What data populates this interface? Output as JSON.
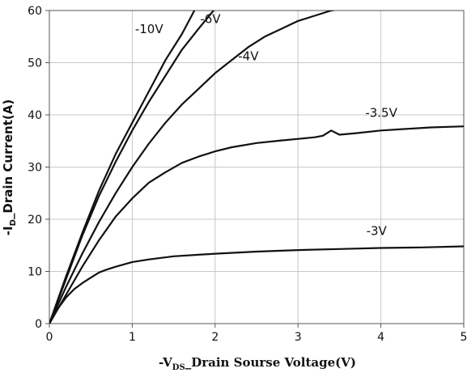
{
  "chart_data": {
    "type": "line",
    "xlabel": {
      "prefix": "-V",
      "subscript": "DS",
      "suffix": "_Drain Sourse Voltage(V)"
    },
    "ylabel": {
      "prefix": "-I",
      "subscript": "D",
      "suffix": "_Drain Current(A)"
    },
    "xlim": [
      0,
      5
    ],
    "ylim": [
      0,
      60
    ],
    "x_ticks": [
      "0",
      "1",
      "2",
      "3",
      "4",
      "5"
    ],
    "y_ticks": [
      "0",
      "10",
      "20",
      "30",
      "40",
      "50",
      "60"
    ],
    "grid": true,
    "line_color": "#111111",
    "grid_color": "#c8c8c8",
    "series": [
      {
        "name": "-10V",
        "x": [
          0,
          0.2,
          0.4,
          0.6,
          0.8,
          1.0,
          1.2,
          1.4,
          1.6,
          1.75
        ],
        "y": [
          0,
          9.0,
          17.5,
          25.5,
          32.5,
          38.5,
          44.5,
          50.5,
          55.5,
          60
        ]
      },
      {
        "name": "-6V",
        "x": [
          0,
          0.2,
          0.4,
          0.6,
          0.8,
          1.0,
          1.2,
          1.4,
          1.6,
          1.8,
          1.98
        ],
        "y": [
          0,
          8.5,
          17.0,
          24.5,
          31.0,
          37.0,
          42.5,
          47.5,
          52.5,
          56.5,
          60
        ]
      },
      {
        "name": "-4V",
        "x": [
          0,
          0.2,
          0.4,
          0.6,
          0.8,
          1.0,
          1.2,
          1.4,
          1.6,
          1.8,
          2.0,
          2.2,
          2.4,
          2.6,
          2.8,
          3.0,
          3.2,
          3.4,
          3.5
        ],
        "y": [
          0,
          7.0,
          13.5,
          19.5,
          25.0,
          30.0,
          34.5,
          38.5,
          42.0,
          45.0,
          48.0,
          50.5,
          53.0,
          55.0,
          56.5,
          58.0,
          59.0,
          60.0,
          60.3
        ]
      },
      {
        "name": "-3.5V",
        "x": [
          0,
          0.2,
          0.4,
          0.6,
          0.8,
          1.0,
          1.2,
          1.4,
          1.6,
          1.8,
          2.0,
          2.2,
          2.5,
          2.8,
          3.0,
          3.2,
          3.3,
          3.4,
          3.5,
          3.7,
          4.0,
          4.3,
          4.6,
          5.0
        ],
        "y": [
          0,
          5.5,
          11.0,
          16.0,
          20.5,
          24.0,
          27.0,
          29.0,
          30.8,
          32.0,
          33.0,
          33.8,
          34.6,
          35.1,
          35.4,
          35.7,
          36.0,
          37.0,
          36.2,
          36.5,
          37.0,
          37.3,
          37.6,
          37.8
        ]
      },
      {
        "name": "-3V",
        "x": [
          0,
          0.1,
          0.2,
          0.3,
          0.4,
          0.5,
          0.6,
          0.7,
          0.8,
          1.0,
          1.2,
          1.5,
          2.0,
          2.5,
          3.0,
          3.5,
          4.0,
          4.5,
          5.0
        ],
        "y": [
          0,
          2.8,
          5.0,
          6.6,
          7.8,
          8.8,
          9.8,
          10.4,
          10.9,
          11.8,
          12.3,
          12.9,
          13.4,
          13.8,
          14.1,
          14.3,
          14.5,
          14.6,
          14.8
        ]
      }
    ]
  }
}
